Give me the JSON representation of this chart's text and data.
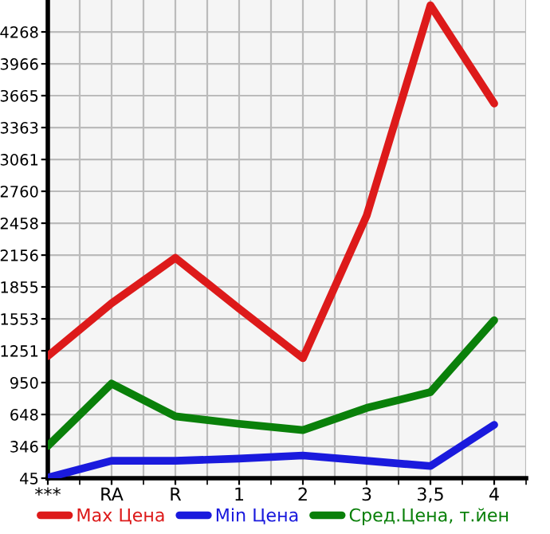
{
  "chart_data": {
    "type": "line",
    "categories": [
      "***",
      "RA",
      "R",
      "1",
      "2",
      "3",
      "3,5",
      "4"
    ],
    "series": [
      {
        "name": "Max Цена",
        "color": "#dd1a1a",
        "values": [
          1200,
          1700,
          2130,
          1650,
          1180,
          2530,
          4520,
          3590
        ]
      },
      {
        "name": "Min Цена",
        "color": "#1a1add",
        "values": [
          50,
          210,
          210,
          230,
          260,
          210,
          160,
          550
        ]
      },
      {
        "name": "Сред.Цена, т.йен",
        "color": "#0a800a",
        "values": [
          350,
          940,
          630,
          560,
          500,
          710,
          860,
          1540
        ]
      }
    ],
    "ylim": [
      45,
      4570
    ],
    "yticks": [
      45,
      346,
      648,
      950,
      1251,
      1553,
      1855,
      2156,
      2458,
      2760,
      3061,
      3363,
      3665,
      3966,
      4268
    ],
    "grid": true,
    "legend": "bottom",
    "marker": "none",
    "line_style": "solid"
  }
}
